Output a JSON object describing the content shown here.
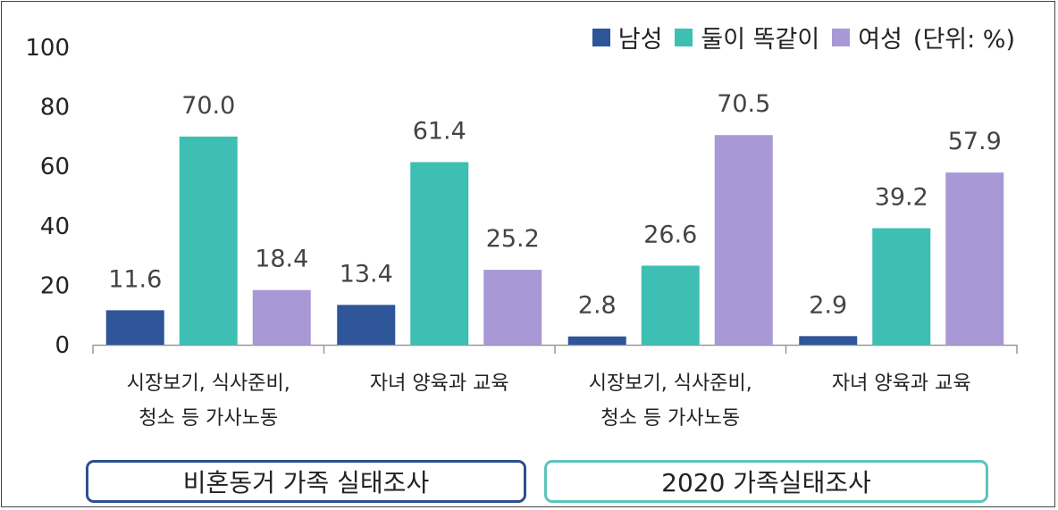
{
  "chart_data": {
    "type": "bar",
    "categories": [
      {
        "line1": "시장보기, 식사준비,",
        "line2": "청소 등 가사노동"
      },
      {
        "line1": "자녀 양육과 교육",
        "line2": ""
      },
      {
        "line1": "시장보기, 식사준비,",
        "line2": "청소 등 가사노동"
      },
      {
        "line1": "자녀 양육과 교육",
        "line2": ""
      }
    ],
    "series": [
      {
        "name": "남성",
        "color": "#2d5597",
        "values": [
          11.6,
          13.4,
          2.8,
          2.9
        ],
        "labels": [
          "11.6",
          "13.4",
          "2.8",
          "2.9"
        ]
      },
      {
        "name": "둘이 똑같이",
        "color": "#3dbfb4",
        "values": [
          70.0,
          61.4,
          26.6,
          39.2
        ],
        "labels": [
          "70.0",
          "61.4",
          "26.6",
          "39.2"
        ]
      },
      {
        "name": "여성",
        "color": "#a899d6",
        "values": [
          18.4,
          25.2,
          70.5,
          57.9
        ],
        "labels": [
          "18.4",
          "25.2",
          "70.5",
          "57.9"
        ]
      }
    ],
    "ylim": [
      0,
      100
    ],
    "yticks": [
      "0",
      "20",
      "40",
      "60",
      "80",
      "100"
    ],
    "unit_note": "(단위: %)",
    "groups": [
      {
        "label": "비혼동거 가족 실태조사",
        "color": "#2d4f8f"
      },
      {
        "label": "2020 가족실태조사",
        "color": "#5cc4bc"
      }
    ],
    "legend_position": "top-right",
    "grid": false
  }
}
